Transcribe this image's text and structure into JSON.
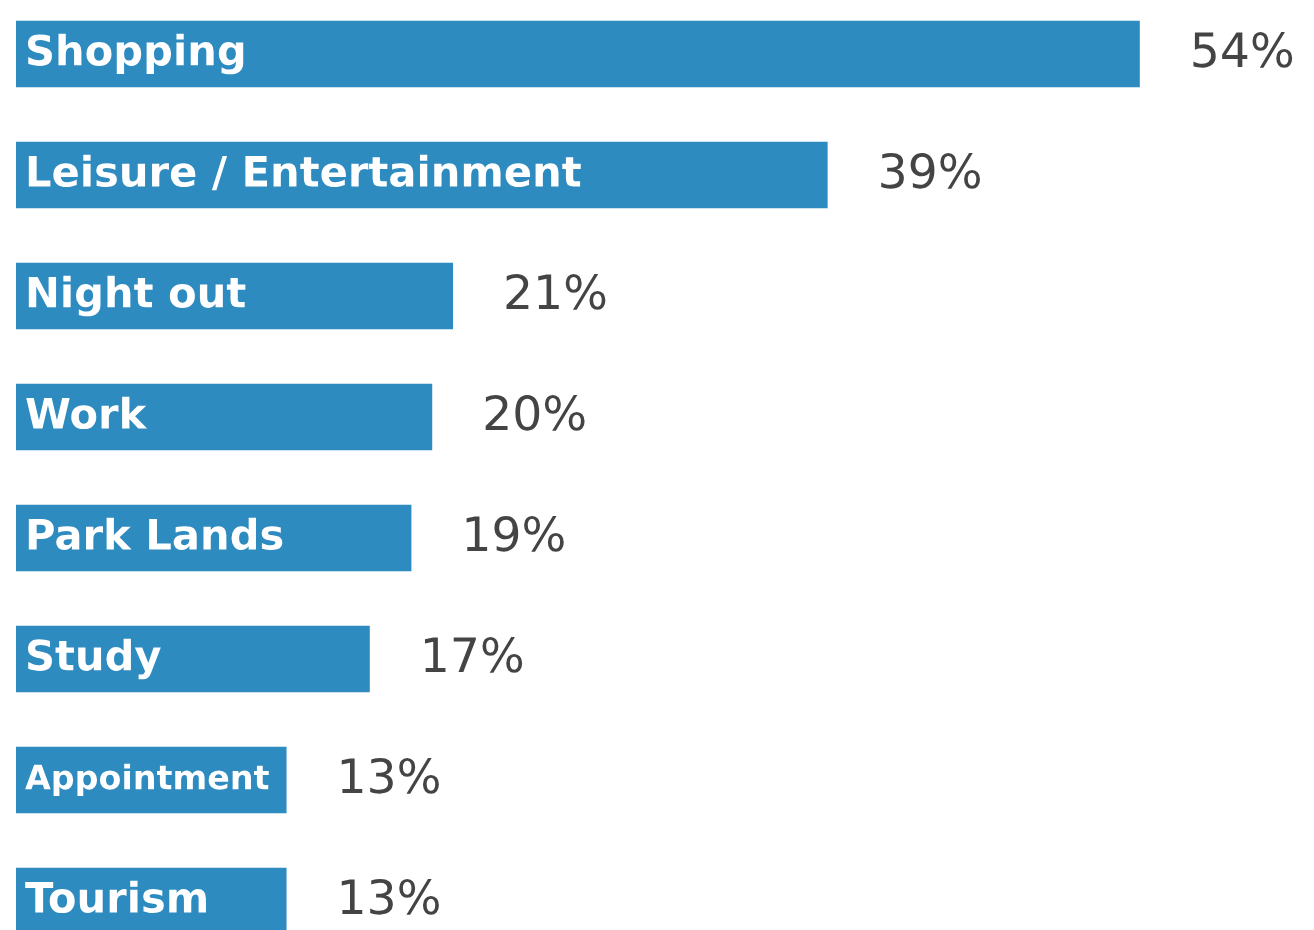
{
  "chart_data": {
    "type": "bar",
    "orientation": "horizontal",
    "categories": [
      "Shopping",
      "Leisure / Entertainment",
      "Night out",
      "Work",
      "Park Lands",
      "Study",
      "Appointment",
      "Tourism"
    ],
    "values": [
      54,
      39,
      21,
      20,
      19,
      17,
      13,
      13
    ],
    "value_labels": [
      "54%",
      "39%",
      "21%",
      "20%",
      "19%",
      "17%",
      "13%",
      "13%"
    ],
    "color": "#2e8bc0"
  }
}
